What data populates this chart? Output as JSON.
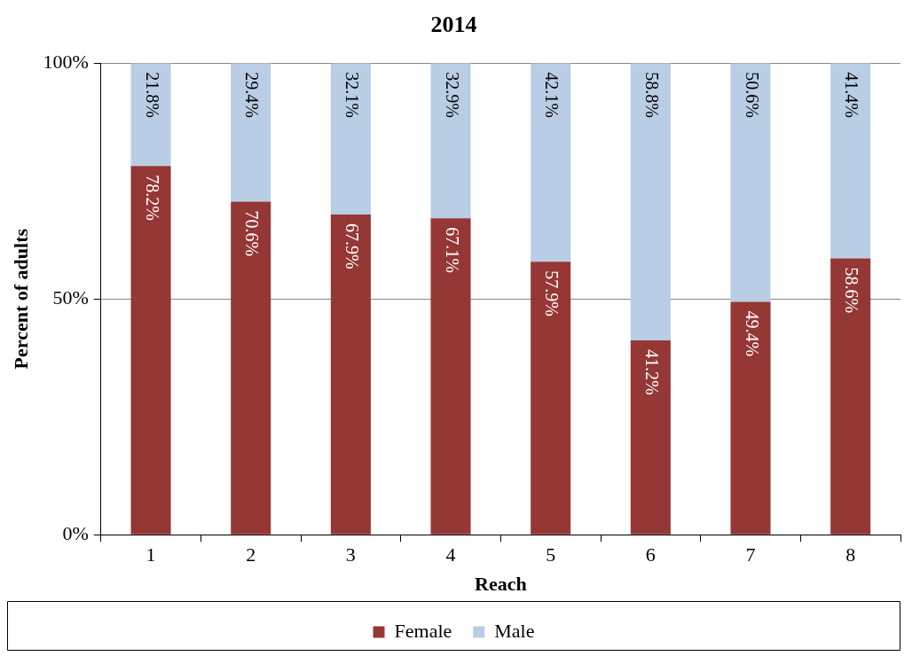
{
  "chart_data": {
    "type": "bar",
    "title": "2014",
    "xlabel": "Reach",
    "ylabel": "Percent of adults",
    "categories": [
      "1",
      "2",
      "3",
      "4",
      "5",
      "6",
      "7",
      "8"
    ],
    "stacked": true,
    "ylim": [
      0,
      100
    ],
    "yticks": [
      {
        "value": 0,
        "label": "0%"
      },
      {
        "value": 50,
        "label": "50%"
      },
      {
        "value": 100,
        "label": "100%"
      }
    ],
    "grid": "y",
    "legend": "bottom",
    "series": [
      {
        "name": "Female",
        "color": "#953735",
        "values": [
          78.2,
          70.6,
          67.9,
          67.1,
          57.9,
          41.2,
          49.4,
          58.6
        ],
        "value_labels": [
          "78.2%",
          "70.6%",
          "67.9%",
          "67.1%",
          "57.9%",
          "41.2%",
          "49.4%",
          "58.6%"
        ]
      },
      {
        "name": "Male",
        "color": "#b9cde5",
        "values": [
          21.8,
          29.4,
          32.1,
          32.9,
          42.1,
          58.8,
          50.6,
          41.4
        ],
        "value_labels": [
          "21.8%",
          "29.4%",
          "32.1%",
          "32.9%",
          "42.1%",
          "58.8%",
          "50.6%",
          "41.4%"
        ]
      }
    ]
  }
}
